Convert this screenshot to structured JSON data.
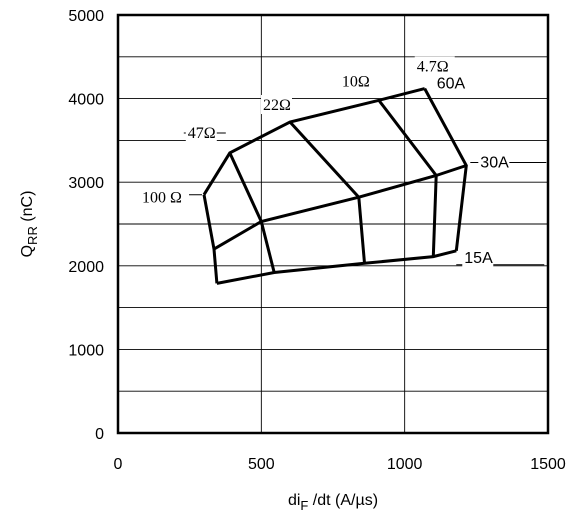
{
  "chart_data": {
    "type": "line",
    "xlabel_main": "di",
    "xlabel_sub": "F",
    "xlabel_rest": " /dt (A/µs)",
    "ylabel_main": "Q",
    "ylabel_sub": "RR",
    "ylabel_rest": " (nC)",
    "xlim": [
      0,
      1500
    ],
    "ylim": [
      0,
      5000
    ],
    "xticks": [
      0,
      500,
      1000,
      1500
    ],
    "yticks": [
      0,
      1000,
      2000,
      3000,
      4000,
      5000
    ],
    "grid": true,
    "current_lines": [
      {
        "name": "60A",
        "points": [
          [
            300,
            2850
          ],
          [
            390,
            3350
          ],
          [
            600,
            3720
          ],
          [
            910,
            3980
          ],
          [
            1070,
            4120
          ]
        ]
      },
      {
        "name": "30A",
        "points": [
          [
            335,
            2200
          ],
          [
            500,
            2530
          ],
          [
            840,
            2820
          ],
          [
            1110,
            3080
          ],
          [
            1215,
            3200
          ]
        ]
      },
      {
        "name": "15A",
        "points": [
          [
            345,
            1790
          ],
          [
            545,
            1920
          ],
          [
            860,
            2030
          ],
          [
            1100,
            2110
          ],
          [
            1180,
            2180
          ]
        ]
      }
    ],
    "resistance_lines": [
      {
        "name": "100 Ω",
        "points": [
          [
            300,
            2850
          ],
          [
            335,
            2200
          ],
          [
            345,
            1790
          ]
        ]
      },
      {
        "name": "47Ω",
        "points": [
          [
            390,
            3350
          ],
          [
            500,
            2530
          ],
          [
            545,
            1920
          ]
        ]
      },
      {
        "name": "22Ω",
        "points": [
          [
            600,
            3720
          ],
          [
            840,
            2820
          ],
          [
            860,
            2030
          ]
        ]
      },
      {
        "name": "10Ω",
        "points": [
          [
            910,
            3980
          ],
          [
            1110,
            3080
          ],
          [
            1100,
            2110
          ]
        ]
      },
      {
        "name": "4.7Ω",
        "points": [
          [
            1070,
            4120
          ],
          [
            1215,
            3200
          ],
          [
            1180,
            2180
          ]
        ]
      }
    ],
    "annotations": [
      {
        "text": "100 Ω",
        "x": 300,
        "y": 2850,
        "font": "serif",
        "leader": true
      },
      {
        "text": "47Ω",
        "x": 390,
        "y": 3350,
        "font": "serif",
        "leader": true
      },
      {
        "text": "22Ω",
        "x": 600,
        "y": 3720,
        "font": "serif",
        "leader": false
      },
      {
        "text": "10Ω",
        "x": 910,
        "y": 3980,
        "font": "serif",
        "leader": false
      },
      {
        "text": "4.7Ω",
        "x": 1070,
        "y": 4120,
        "font": "serif",
        "leader": false
      },
      {
        "text": "60A",
        "x": 1070,
        "y": 4120,
        "font": "sans",
        "leader": false
      },
      {
        "text": "30A",
        "x": 1215,
        "y": 3200,
        "font": "sans",
        "leader": true
      },
      {
        "text": "15A",
        "x": 1180,
        "y": 2180,
        "font": "sans",
        "leader": true
      }
    ]
  }
}
